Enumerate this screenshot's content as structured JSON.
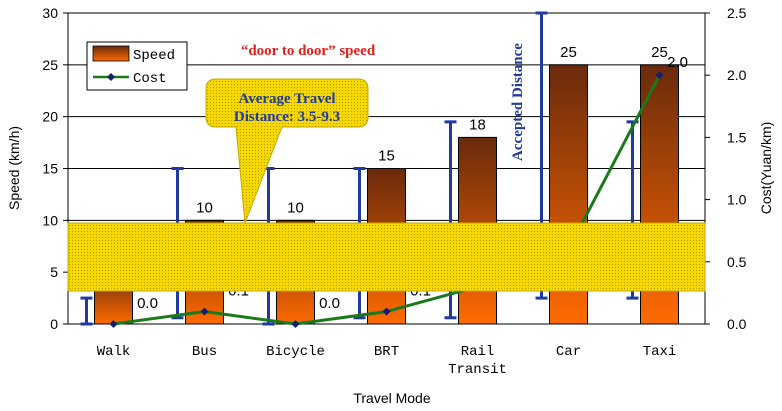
{
  "chart_data": {
    "type": "bar",
    "categories": [
      "Walk",
      "Bus",
      "Bicycle",
      "BRT",
      "Rail Transit",
      "Car",
      "Taxi"
    ],
    "category_lines": [
      [
        "Walk"
      ],
      [
        "Bus"
      ],
      [
        "Bicycle"
      ],
      [
        "BRT"
      ],
      [
        "Rail",
        "Transit"
      ],
      [
        "Car"
      ],
      [
        "Taxi"
      ]
    ],
    "xlabel": "Travel Mode",
    "ylabel": "Speed (km/h)",
    "y2label": "Cost(Yuan/km)",
    "ylim": [
      0,
      30
    ],
    "y2lim": [
      0,
      2.5
    ],
    "yticks": [
      "0",
      "5",
      "10",
      "15",
      "20",
      "25",
      "30"
    ],
    "y2ticks": [
      "0.0",
      "0.5",
      "1.0",
      "1.5",
      "2.0",
      "2.5"
    ],
    "legend_position": "top-left",
    "series": [
      {
        "name": "Speed",
        "kind": "bar",
        "axis": "left",
        "values": [
          5,
          10,
          10,
          15,
          18,
          25,
          25
        ],
        "labels": [
          "",
          "10",
          "10",
          "15",
          "18",
          "25",
          "25"
        ]
      },
      {
        "name": "Cost",
        "kind": "line",
        "axis": "right",
        "values": [
          0.0,
          0.1,
          0.0,
          0.1,
          0.3,
          0.6,
          2.0
        ],
        "labels": [
          "0.0",
          "0.1",
          "0.0",
          "0.1",
          "0.3",
          "",
          "2.0"
        ]
      }
    ],
    "error_ranges": [
      [
        0,
        2.5
      ],
      [
        0.6,
        15
      ],
      [
        0,
        15
      ],
      [
        0.6,
        15
      ],
      [
        0.6,
        19.5
      ],
      [
        2.5,
        30
      ],
      [
        2.5,
        19.5
      ]
    ],
    "annotations": {
      "speed_note": "“door to door” speed",
      "accepted_distance": "Accepted Distance",
      "callout_line1": "Average Travel",
      "callout_line2": "Distance: 3.5-9.3"
    },
    "colors": {
      "bar_top": "#6a2a0c",
      "bar_bottom": "#ff6a00",
      "cost_line": "#1a7a1a",
      "cost_marker": "#14206a",
      "error_bar": "#1f3aa0",
      "band_fill": "#f5d800",
      "annotation_red": "#e0201b"
    }
  }
}
